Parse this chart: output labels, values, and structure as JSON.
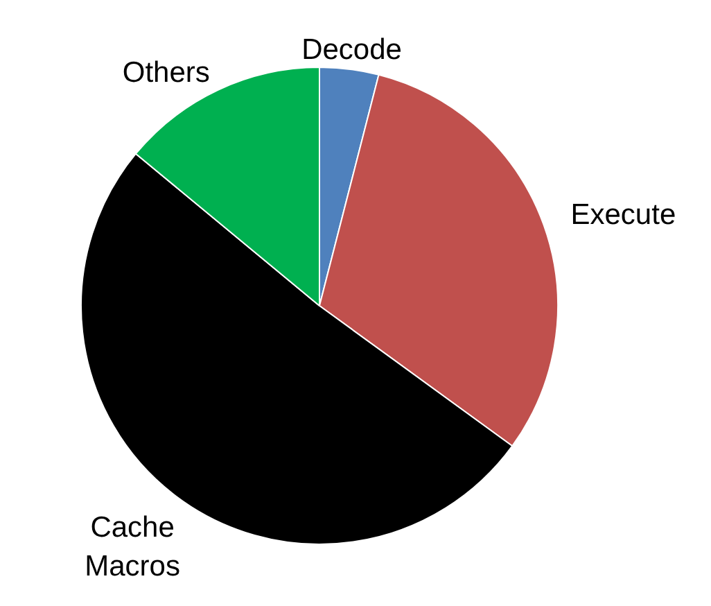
{
  "chart_data": {
    "type": "pie",
    "categories": [
      "Decode",
      "Execute",
      "Cache Macros",
      "Others"
    ],
    "values": [
      4,
      31,
      51,
      14
    ],
    "colors": [
      "#4f81bd",
      "#c0504d",
      "#000000",
      "#00b050"
    ]
  }
}
